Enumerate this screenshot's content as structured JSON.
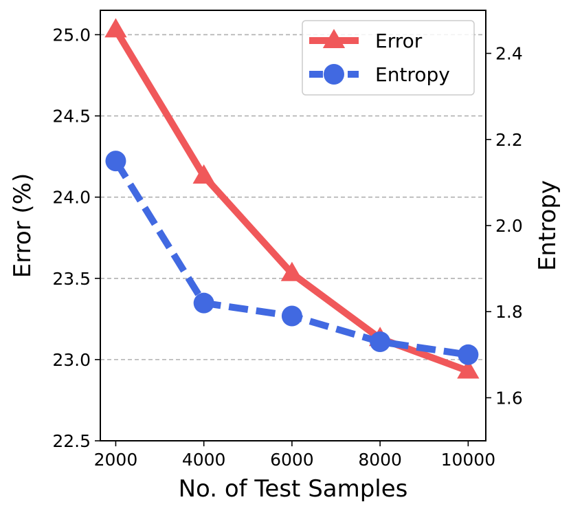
{
  "chart_data": {
    "type": "line",
    "xlabel": "No. of Test Samples",
    "ylabel": "Error (%)",
    "y2label": "Entropy",
    "x": [
      2000,
      4000,
      6000,
      8000,
      10000
    ],
    "x_ticks": [
      "2000",
      "4000",
      "6000",
      "8000",
      "10000"
    ],
    "xlim": [
      1650,
      10400
    ],
    "ylim": [
      22.5,
      25.15
    ],
    "y_ticks": [
      "22.5",
      "23.0",
      "23.5",
      "24.0",
      "24.5",
      "25.0"
    ],
    "y2lim": [
      1.5,
      2.5
    ],
    "y2_ticks": [
      "1.6",
      "1.8",
      "2.0",
      "2.2",
      "2.4"
    ],
    "grid": "horizontal dashed",
    "legend_position": "top-right",
    "series": [
      {
        "name": "Error",
        "axis": "left",
        "values": [
          25.03,
          24.13,
          23.53,
          23.13,
          22.93
        ],
        "color": "#f0585a",
        "marker": "triangle",
        "linestyle": "solid"
      },
      {
        "name": "Entropy",
        "axis": "right",
        "values": [
          2.15,
          1.82,
          1.79,
          1.73,
          1.7
        ],
        "color": "#4169e1",
        "marker": "circle",
        "linestyle": "dashed"
      }
    ]
  }
}
